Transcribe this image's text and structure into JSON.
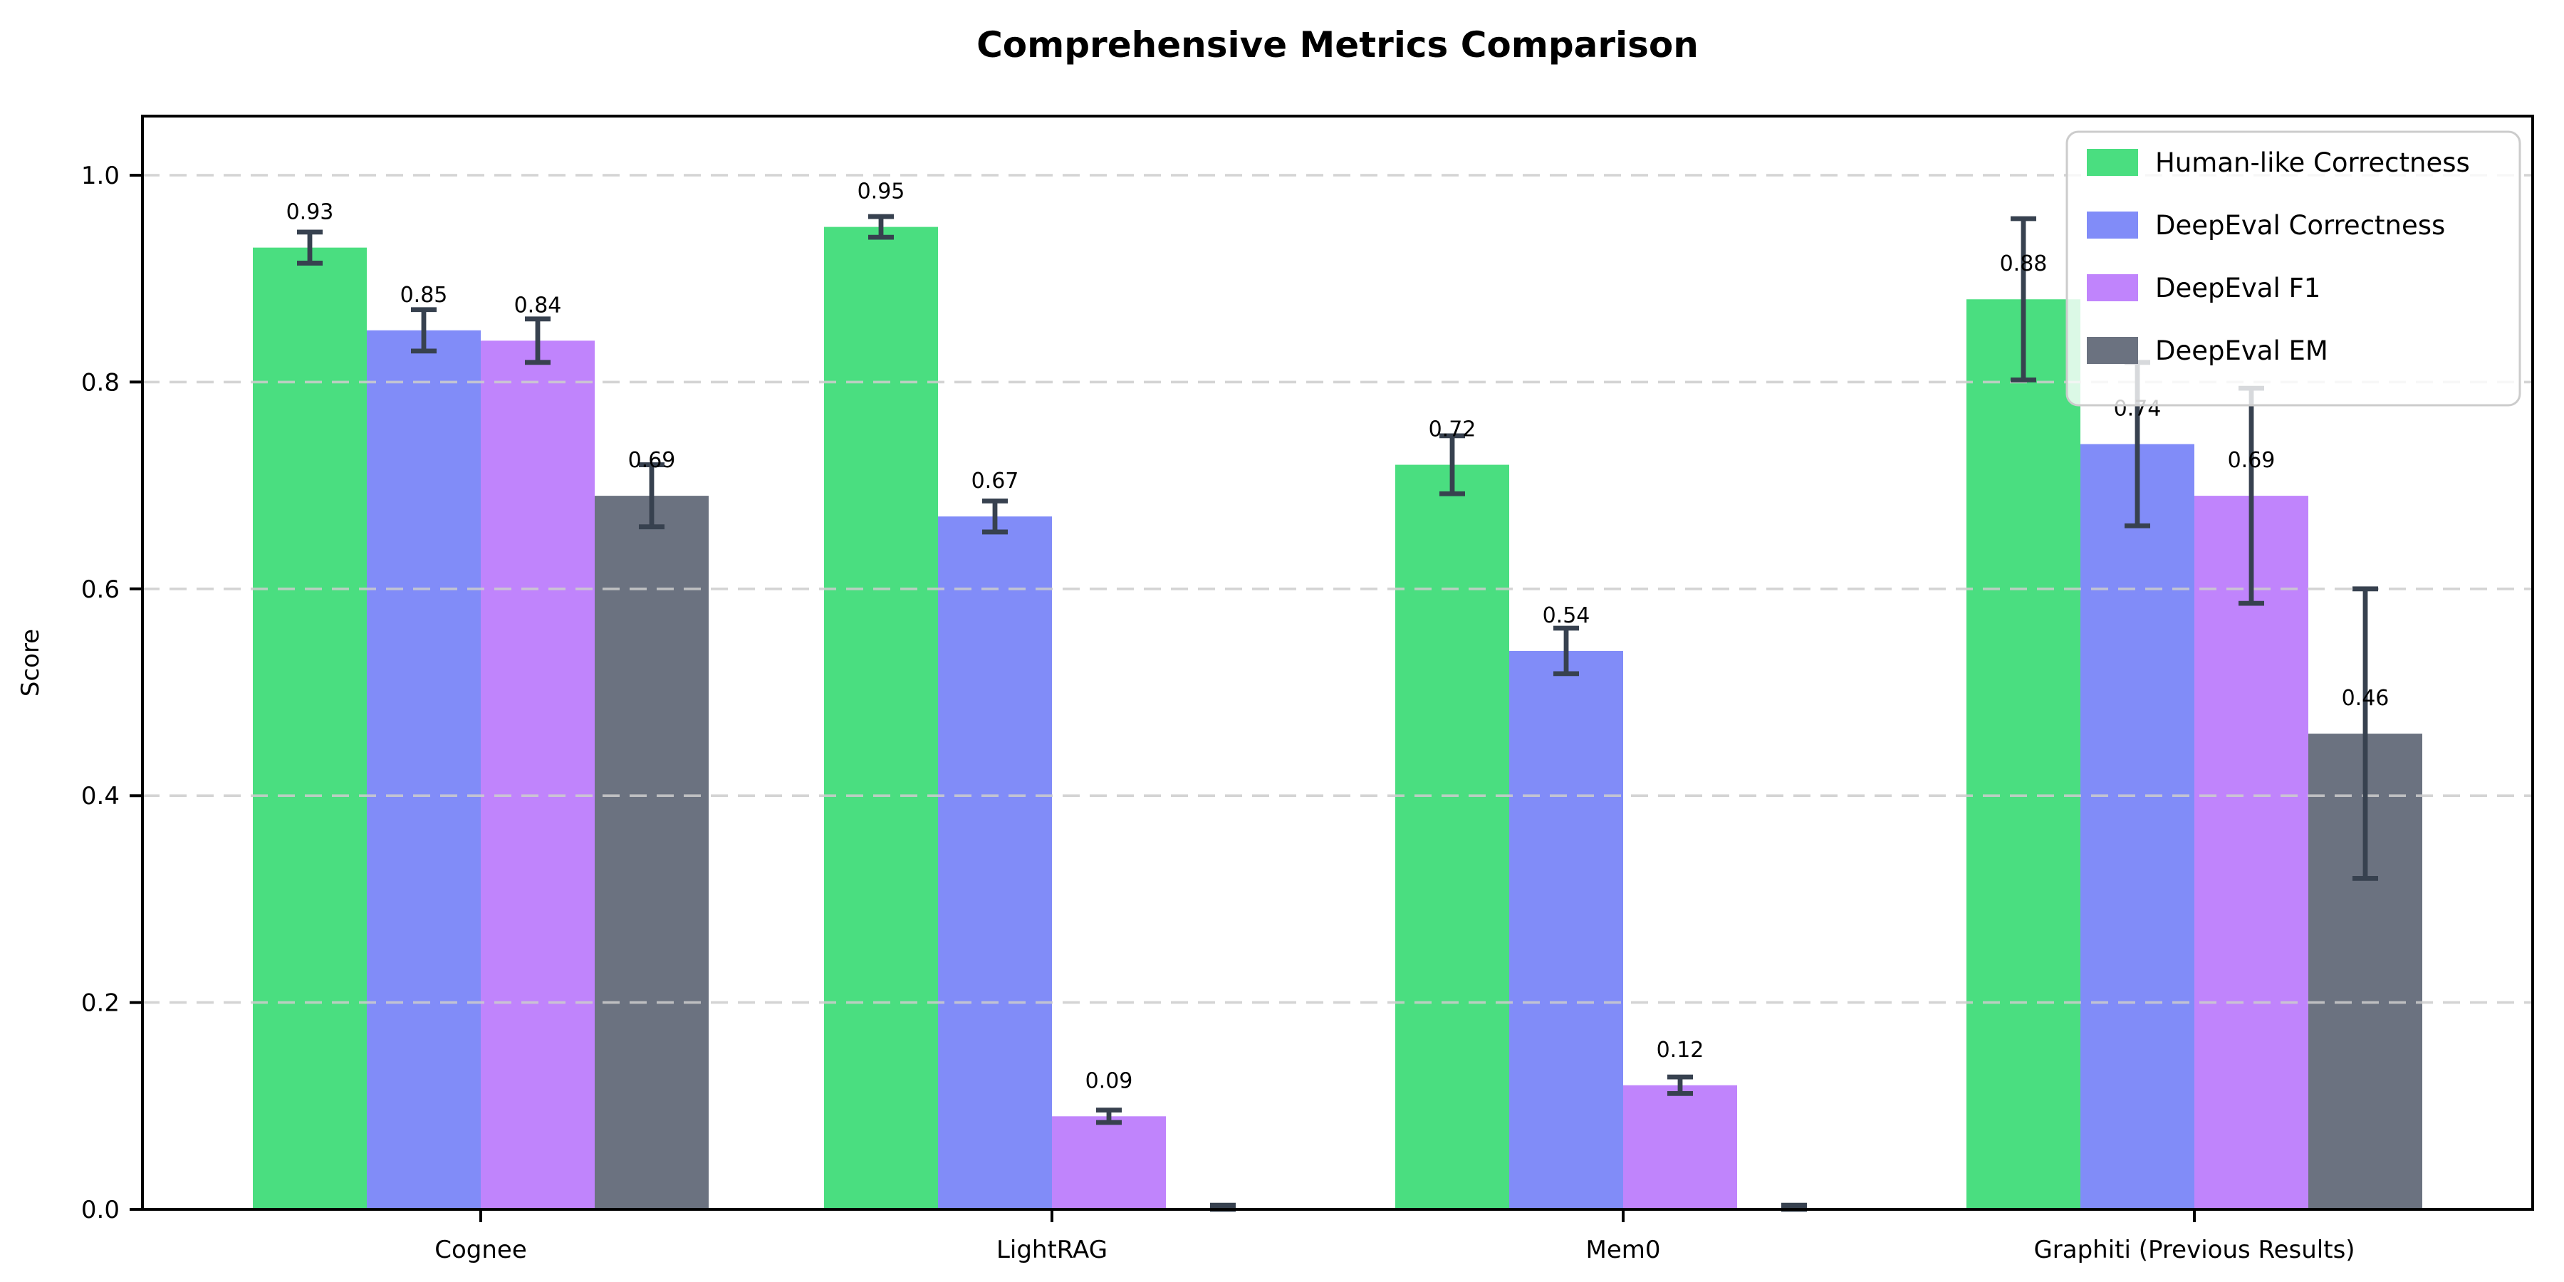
{
  "title": "Comprehensive Metrics Comparison",
  "chart_data": {
    "type": "bar",
    "title": "Comprehensive Metrics Comparison",
    "xlabel": "",
    "ylabel": "Score",
    "categories": [
      "Cognee",
      "LightRAG",
      "Mem0",
      "Graphiti (Previous Results)"
    ],
    "series": [
      {
        "name": "Human-like Correctness",
        "color": "#4ade80",
        "values": [
          0.93,
          0.95,
          0.72,
          0.88
        ],
        "errors": [
          0.015,
          0.01,
          0.028,
          0.078
        ]
      },
      {
        "name": "DeepEval Correctness",
        "color": "#818cf8",
        "values": [
          0.85,
          0.67,
          0.54,
          0.74
        ],
        "errors": [
          0.02,
          0.015,
          0.022,
          0.079
        ]
      },
      {
        "name": "DeepEval F1",
        "color": "#c084fc",
        "values": [
          0.84,
          0.09,
          0.12,
          0.69
        ],
        "errors": [
          0.021,
          0.006,
          0.008,
          0.104
        ]
      },
      {
        "name": "DeepEval EM",
        "color": "#6b7280",
        "values": [
          0.69,
          0.0,
          0.0,
          0.46
        ],
        "errors": [
          0.03,
          0.004,
          0.004,
          0.14
        ]
      }
    ],
    "yticks": [
      "0.0",
      "0.2",
      "0.4",
      "0.6",
      "0.8",
      "1.0"
    ],
    "ylim": [
      0,
      1.057
    ],
    "grid": "horizontal-dashed",
    "grid_color": "#cccccc",
    "legend_position": "upper-right",
    "error_bar_color": "#37414f",
    "spine_color": "#000000",
    "value_label_decimals": 2,
    "hide_zero_value_labels": true
  }
}
